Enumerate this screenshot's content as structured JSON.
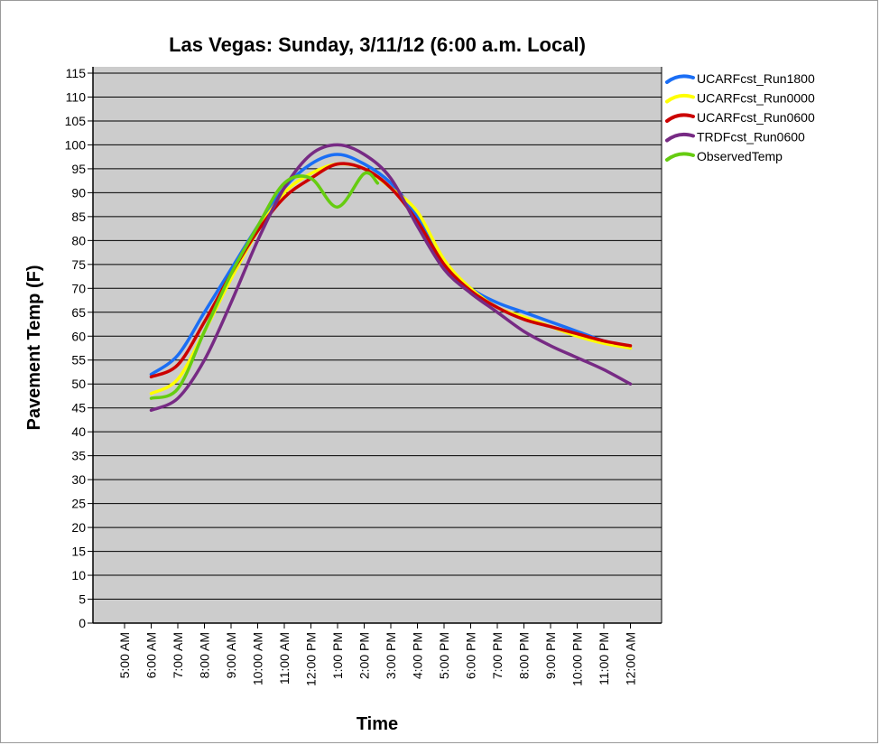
{
  "chart_data": {
    "type": "line",
    "title": "Las Vegas: Sunday, 3/11/12 (6:00 a.m. Local)",
    "xlabel": "Time",
    "ylabel": "Pavement Temp (F)",
    "ylim": [
      0,
      115
    ],
    "y_ticks": [
      0,
      5,
      10,
      15,
      20,
      25,
      30,
      35,
      40,
      45,
      50,
      55,
      60,
      65,
      70,
      75,
      80,
      85,
      90,
      95,
      100,
      105,
      110,
      115
    ],
    "categories": [
      "5:00 AM",
      "6:00 AM",
      "7:00 AM",
      "8:00 AM",
      "9:00 AM",
      "10:00 AM",
      "11:00 AM",
      "12:00 PM",
      "1:00 PM",
      "2:00 PM",
      "3:00 PM",
      "4:00 PM",
      "5:00 PM",
      "6:00 PM",
      "7:00 PM",
      "8:00 PM",
      "9:00 PM",
      "10:00 PM",
      "11:00 PM",
      "12:00 AM"
    ],
    "grid": true,
    "legend_position": "right",
    "background": "#cccccc",
    "series": [
      {
        "name": "UCARFcst_Run1800",
        "color": "#1a6ef5",
        "points": [
          [
            "6:00 AM",
            52
          ],
          [
            "7:00 AM",
            56
          ],
          [
            "8:00 AM",
            65
          ],
          [
            "9:00 AM",
            74
          ],
          [
            "10:00 AM",
            83
          ],
          [
            "11:00 AM",
            91
          ],
          [
            "12:00 PM",
            96
          ],
          [
            "1:00 PM",
            98
          ],
          [
            "2:00 PM",
            96
          ],
          [
            "3:00 PM",
            92
          ],
          [
            "4:00 PM",
            85
          ],
          [
            "5:00 PM",
            75
          ],
          [
            "6:00 PM",
            70
          ],
          [
            "7:00 PM",
            67
          ],
          [
            "8:00 PM",
            65
          ],
          [
            "9:00 PM",
            63
          ],
          [
            "10:00 PM",
            61
          ],
          [
            "11:00 PM",
            59
          ],
          [
            "12:00 AM",
            57.5
          ]
        ]
      },
      {
        "name": "UCARFcst_Run0000",
        "color": "#ffff00",
        "points": [
          [
            "6:00 AM",
            48
          ],
          [
            "7:00 AM",
            51
          ],
          [
            "8:00 AM",
            61
          ],
          [
            "9:00 AM",
            72
          ],
          [
            "10:00 AM",
            82
          ],
          [
            "11:00 AM",
            90
          ],
          [
            "12:00 PM",
            94
          ],
          [
            "1:00 PM",
            96
          ],
          [
            "2:00 PM",
            95
          ],
          [
            "3:00 PM",
            91
          ],
          [
            "4:00 PM",
            86
          ],
          [
            "5:00 PM",
            76
          ],
          [
            "6:00 PM",
            70
          ],
          [
            "7:00 PM",
            66
          ],
          [
            "8:00 PM",
            64
          ],
          [
            "9:00 PM",
            62
          ],
          [
            "10:00 PM",
            60
          ],
          [
            "11:00 PM",
            58.5
          ],
          [
            "12:00 AM",
            57.5
          ]
        ]
      },
      {
        "name": "UCARFcst_Run0600",
        "color": "#cc0000",
        "points": [
          [
            "6:00 AM",
            51.5
          ],
          [
            "7:00 AM",
            54
          ],
          [
            "8:00 AM",
            63
          ],
          [
            "9:00 AM",
            73
          ],
          [
            "10:00 AM",
            82
          ],
          [
            "11:00 AM",
            89
          ],
          [
            "12:00 PM",
            93
          ],
          [
            "1:00 PM",
            96
          ],
          [
            "2:00 PM",
            95
          ],
          [
            "3:00 PM",
            91
          ],
          [
            "4:00 PM",
            84
          ],
          [
            "5:00 PM",
            75
          ],
          [
            "6:00 PM",
            69.5
          ],
          [
            "7:00 PM",
            66
          ],
          [
            "8:00 PM",
            63.5
          ],
          [
            "9:00 PM",
            62
          ],
          [
            "10:00 PM",
            60.5
          ],
          [
            "11:00 PM",
            59
          ],
          [
            "12:00 AM",
            58
          ]
        ]
      },
      {
        "name": "TRDFcst_Run0600",
        "color": "#772a84",
        "points": [
          [
            "6:00 AM",
            44.5
          ],
          [
            "7:00 AM",
            47
          ],
          [
            "8:00 AM",
            55
          ],
          [
            "9:00 AM",
            67
          ],
          [
            "10:00 AM",
            80
          ],
          [
            "11:00 AM",
            91
          ],
          [
            "12:00 PM",
            98
          ],
          [
            "1:00 PM",
            100
          ],
          [
            "2:00 PM",
            98
          ],
          [
            "3:00 PM",
            93
          ],
          [
            "4:00 PM",
            83
          ],
          [
            "5:00 PM",
            74
          ],
          [
            "6:00 PM",
            69
          ],
          [
            "7:00 PM",
            65
          ],
          [
            "8:00 PM",
            61
          ],
          [
            "9:00 PM",
            58
          ],
          [
            "10:00 PM",
            55.5
          ],
          [
            "11:00 PM",
            53
          ],
          [
            "12:00 AM",
            50
          ]
        ]
      },
      {
        "name": "ObservedTemp",
        "color": "#66cc11",
        "points": [
          [
            "6:00 AM",
            47
          ],
          [
            "7:00 AM",
            49
          ],
          [
            "8:00 AM",
            61
          ],
          [
            "9:00 AM",
            73
          ],
          [
            "10:00 AM",
            83
          ],
          [
            "11:00 AM",
            92
          ],
          [
            "12:00 PM",
            93
          ],
          [
            "1:00 PM",
            87
          ],
          [
            "2:00 PM",
            94
          ],
          [
            "2:30 PM",
            92
          ]
        ]
      }
    ]
  }
}
